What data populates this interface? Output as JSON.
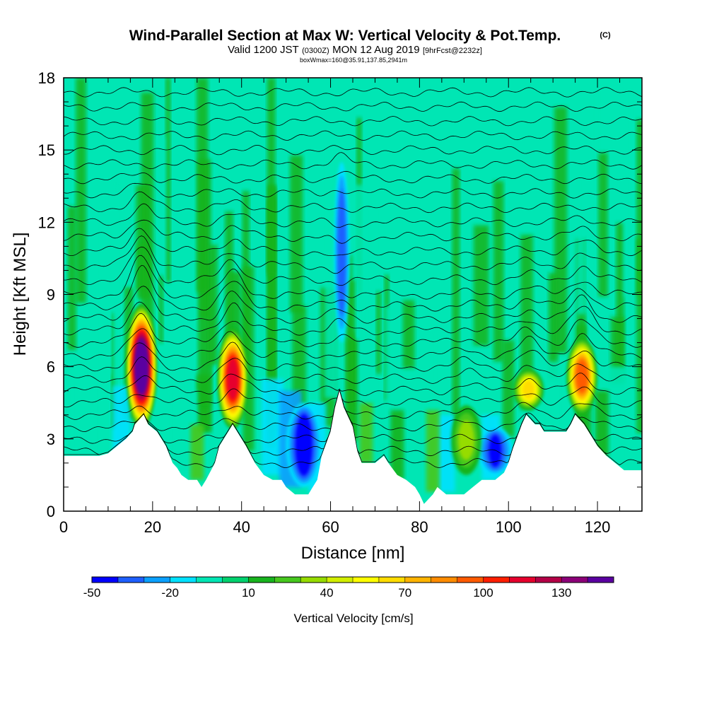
{
  "chart_data": {
    "type": "heatmap",
    "title": "Wind-Parallel Section at Max W: Vertical Velocity & Pot.Temp.",
    "title_mark": "(C)",
    "subtitle": {
      "valid": "Valid 1200 JST",
      "utc": "(0300Z)",
      "date": "MON 12 Aug 2019",
      "forecast": "[9hrFcst@2232z]"
    },
    "box_info": "boxWmax=160@35.91,137.85,2941m",
    "xlabel": "Distance [nm]",
    "ylabel": "Height [Kft MSL]",
    "xlim": [
      0,
      130
    ],
    "ylim": [
      0,
      18
    ],
    "x_ticks": [
      "0",
      "20",
      "40",
      "60",
      "80",
      "100",
      "120"
    ],
    "y_ticks": [
      "0",
      "3",
      "6",
      "9",
      "12",
      "15",
      "18"
    ],
    "colorbar": {
      "label": "Vertical Velocity [cm/s]",
      "tick_labels": [
        "-50",
        "-20",
        "10",
        "40",
        "70",
        "100",
        "130"
      ],
      "min": -50,
      "step": 10,
      "colors": [
        "#0000ff",
        "#1e5fff",
        "#0aa0ff",
        "#00e1ff",
        "#00e6b4",
        "#00d26e",
        "#18b41e",
        "#46c81e",
        "#96dc00",
        "#d2ee00",
        "#ffff00",
        "#ffdc00",
        "#ffb400",
        "#ff8c00",
        "#ff5a00",
        "#ff1e00",
        "#e6002d",
        "#b40046",
        "#8c0078",
        "#5a00a0"
      ]
    },
    "updraft_cores": [
      {
        "x": 17.5,
        "z_bottom": 3.4,
        "z_top": 8.6,
        "w_max": 150
      },
      {
        "x": 38,
        "z_bottom": 3.4,
        "z_top": 7.6,
        "w_max": 110
      },
      {
        "x": 104.5,
        "z_bottom": 4.2,
        "z_top": 5.9,
        "w_max": 60
      },
      {
        "x": 116.5,
        "z_bottom": 4.0,
        "z_top": 7.2,
        "w_max": 90
      },
      {
        "x": 90.5,
        "z_bottom": 1.5,
        "z_top": 4.4,
        "w_max": 30
      }
    ],
    "downdraft_cores": [
      {
        "x": 54,
        "z_bottom": 1.0,
        "z_top": 4.5,
        "w_min": -45
      },
      {
        "x": 62.5,
        "z_bottom": 7.0,
        "z_top": 14.5,
        "w_min": -30
      },
      {
        "x": 97,
        "z_bottom": 1.5,
        "z_top": 3.5,
        "w_min": -35
      }
    ],
    "terrain_height_kft": {
      "x": [
        0,
        3,
        5,
        8,
        10,
        12,
        14,
        15.5,
        16,
        18,
        19,
        21,
        23,
        24.5,
        25.5,
        26.5,
        28,
        30,
        31,
        32,
        34,
        35,
        37,
        38,
        39,
        41,
        43,
        45,
        47,
        49,
        50,
        52,
        55,
        56,
        57,
        58,
        60,
        61,
        62,
        63,
        65,
        66,
        67,
        68,
        70,
        72,
        73,
        75,
        77,
        79,
        80,
        81,
        83,
        84,
        86,
        88,
        90,
        92,
        94,
        95,
        96,
        97,
        99,
        100,
        101,
        103,
        104,
        106,
        107,
        108,
        109,
        110,
        111,
        113,
        114,
        115,
        117,
        118,
        120,
        122,
        124,
        126,
        128,
        130
      ],
      "z": [
        2.3,
        2.3,
        2.3,
        2.3,
        2.4,
        2.7,
        3.0,
        3.3,
        3.6,
        4.0,
        3.6,
        3.3,
        2.7,
        2.0,
        1.8,
        1.5,
        1.3,
        1.3,
        1.0,
        1.3,
        2.0,
        2.7,
        3.3,
        3.6,
        3.3,
        2.7,
        2.0,
        1.5,
        1.3,
        1.3,
        1.0,
        0.7,
        0.7,
        1.0,
        1.3,
        2.3,
        3.3,
        4.3,
        5.0,
        4.3,
        3.5,
        2.5,
        2.0,
        2.0,
        2.0,
        2.3,
        2.0,
        1.5,
        1.3,
        1.0,
        0.7,
        0.3,
        0.7,
        1.0,
        0.7,
        0.7,
        0.7,
        1.0,
        1.3,
        1.3,
        1.3,
        1.3,
        1.6,
        2.0,
        2.6,
        3.6,
        4.0,
        3.6,
        3.6,
        3.3,
        3.3,
        3.3,
        3.3,
        3.3,
        3.6,
        4.0,
        3.6,
        3.3,
        2.7,
        2.3,
        2.0,
        1.7,
        1.7,
        1.7
      ]
    },
    "theta_contours_kft": [
      2.0,
      2.5,
      3.0,
      3.5,
      4.0,
      4.5,
      5.0,
      5.5,
      6.0,
      6.5,
      7.0,
      7.5,
      8.0,
      8.5,
      9.0,
      9.6,
      10.2,
      10.8,
      11.4,
      12.0,
      12.6,
      13.2,
      13.8,
      14.4,
      15.0,
      15.6,
      16.2,
      16.8,
      17.4
    ]
  }
}
